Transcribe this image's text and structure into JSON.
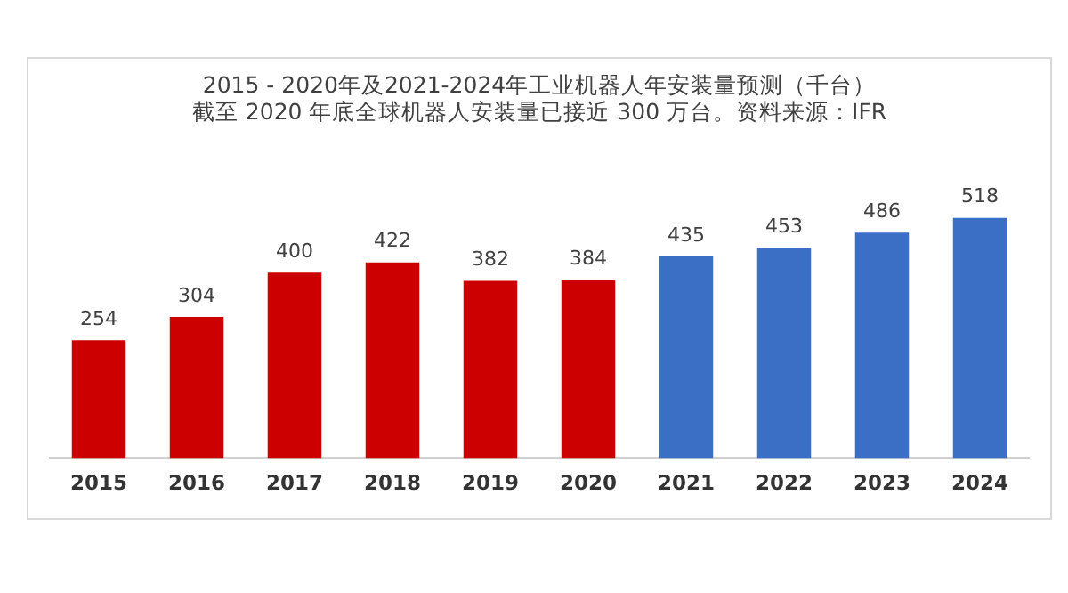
{
  "chart_data": {
    "type": "bar",
    "title": "2015 - 2020年及2021-2024年工业机器人年安装量预测（千台）",
    "subtitle": "截至 2020 年底全球机器人安装量已接近 300 万台。资料来源：IFR",
    "categories": [
      "2015",
      "2016",
      "2017",
      "2018",
      "2019",
      "2020",
      "2021",
      "2022",
      "2023",
      "2024"
    ],
    "values": [
      254,
      304,
      400,
      422,
      382,
      384,
      435,
      453,
      486,
      518
    ],
    "colors": [
      "#cc0000",
      "#cc0000",
      "#cc0000",
      "#cc0000",
      "#cc0000",
      "#cc0000",
      "#3b6fc6",
      "#3b6fc6",
      "#3b6fc6",
      "#3b6fc6"
    ],
    "data_labels": true,
    "legend": false,
    "grid": false,
    "tick_labels": "x"
  }
}
